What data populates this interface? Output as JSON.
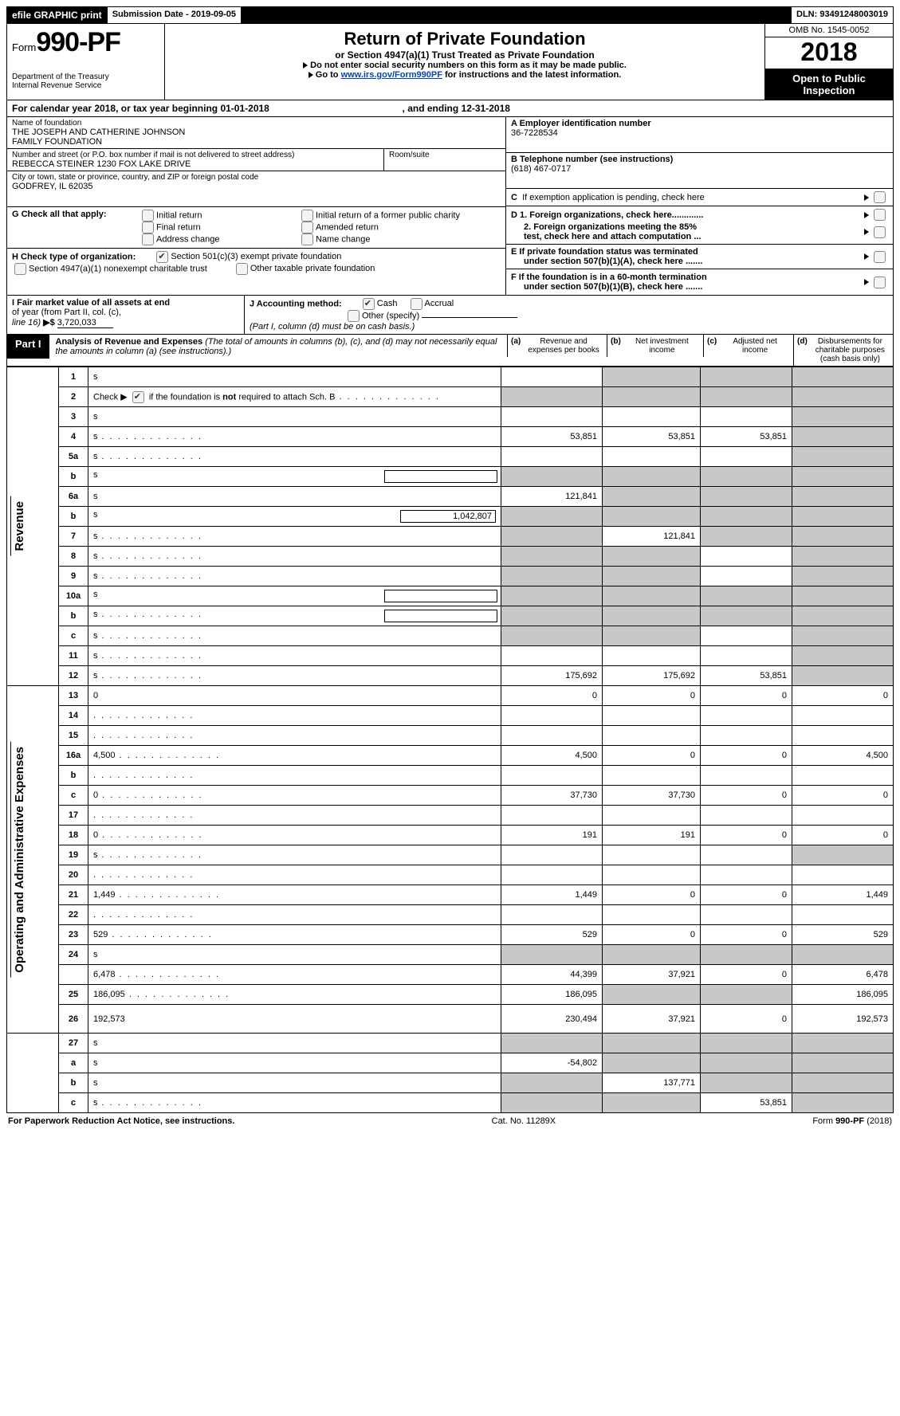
{
  "topbar": {
    "efile": "efile GRAPHIC print",
    "submission_label": "Submission Date - ",
    "submission_date": "2019-09-05",
    "dln_label": "DLN: ",
    "dln": "93491248003019"
  },
  "header": {
    "form_prefix": "Form",
    "form_no": "990-PF",
    "dept1": "Department of the Treasury",
    "dept2": "Internal Revenue Service",
    "title": "Return of Private Foundation",
    "subtitle": "or Section 4947(a)(1) Trust Treated as Private Foundation",
    "note1": "Do not enter social security numbers on this form as it may be made public.",
    "note2_pre": "Go to ",
    "note2_link": "www.irs.gov/Form990PF",
    "note2_post": " for instructions and the latest information.",
    "omb": "OMB No. 1545-0052",
    "year": "2018",
    "open1": "Open to Public",
    "open2": "Inspection"
  },
  "calYear": {
    "pre": "For calendar year 2018, or tax year beginning ",
    "begin": "01-01-2018",
    "mid": ", and ending ",
    "end": "12-31-2018"
  },
  "org": {
    "name_label": "Name of foundation",
    "name1": "THE JOSEPH AND CATHERINE JOHNSON",
    "name2": "FAMILY FOUNDATION",
    "addr_label": "Number and street (or P.O. box number if mail is not delivered to street address)",
    "addr": "REBECCA STEINER 1230 FOX LAKE DRIVE",
    "room_label": "Room/suite",
    "city_label": "City or town, state or province, country, and ZIP or foreign postal code",
    "city": "GODFREY, IL  62035",
    "A_label": "A Employer identification number",
    "A_val": "36-7228534",
    "B_label": "B Telephone number (see instructions)",
    "B_val": "(618) 467-0717",
    "C_label": "C  If exemption application is pending, check here",
    "D1": "D 1. Foreign organizations, check here.............",
    "D2a": "2. Foreign organizations meeting the 85%",
    "D2b": "test, check here and attach computation ...",
    "E1": "E  If private foundation status was terminated",
    "E2": "under section 507(b)(1)(A), check here .......",
    "F1": "F  If the foundation is in a 60-month termination",
    "F2": "under section 507(b)(1)(B), check here ......."
  },
  "G": {
    "label": "G Check all that apply:",
    "opt1": "Initial return",
    "opt2": "Initial return of a former public charity",
    "opt3": "Final return",
    "opt4": "Amended return",
    "opt5": "Address change",
    "opt6": "Name change"
  },
  "H": {
    "label": "H Check type of organization:",
    "opt1": "Section 501(c)(3) exempt private foundation",
    "opt2": "Section 4947(a)(1) nonexempt charitable trust",
    "opt3": "Other taxable private foundation"
  },
  "I": {
    "line1": "I Fair market value of all assets at end",
    "line2": "of year (from Part II, col. (c),",
    "line3_pre": "line 16) ",
    "line3_sym": "▶$ ",
    "value": "3,720,033"
  },
  "J": {
    "label": "J Accounting method:",
    "cash": "Cash",
    "accrual": "Accrual",
    "other": "Other (specify)",
    "note": "(Part I, column (d) must be on cash basis.)"
  },
  "part1": {
    "badge": "Part I",
    "title": "Analysis of Revenue and Expenses ",
    "desc": "(The total of amounts in columns (b), (c), and (d) may not necessarily equal the amounts in column (a) (see instructions).)",
    "colA_l": "(a)",
    "colA": "Revenue and expenses per books",
    "colB_l": "(b)",
    "colB": "Net investment income",
    "colC_l": "(c)",
    "colC": "Adjusted net income",
    "colD_l": "(d)",
    "colD": "Disbursements for charitable purposes (cash basis only)"
  },
  "sideLabels": {
    "rev": "Revenue",
    "exp": "Operating and Administrative Expenses"
  },
  "rows": [
    {
      "n": "1",
      "d": "s",
      "a": "",
      "b": "s",
      "c": "s"
    },
    {
      "n": "2",
      "d": "s",
      "a": "s",
      "b": "s",
      "c": "s",
      "dots": true,
      "chk": true
    },
    {
      "n": "3",
      "d": "s",
      "a": "",
      "b": "",
      "c": ""
    },
    {
      "n": "4",
      "d": "s",
      "a": "53,851",
      "b": "53,851",
      "c": "53,851",
      "dots": true
    },
    {
      "n": "5a",
      "d": "s",
      "a": "",
      "b": "",
      "c": "",
      "dots": true
    },
    {
      "n": "b",
      "d": "s",
      "a": "s",
      "b": "s",
      "c": "s",
      "box": true
    },
    {
      "n": "6a",
      "d": "s",
      "a": "121,841",
      "b": "s",
      "c": "s"
    },
    {
      "n": "b",
      "d": "s",
      "a": "s",
      "b": "s",
      "c": "s",
      "boxval": "1,042,807"
    },
    {
      "n": "7",
      "d": "s",
      "a": "s",
      "b": "121,841",
      "c": "s",
      "dots": true
    },
    {
      "n": "8",
      "d": "s",
      "a": "s",
      "b": "s",
      "c": "",
      "dots": true
    },
    {
      "n": "9",
      "d": "s",
      "a": "s",
      "b": "s",
      "c": "",
      "dots": true
    },
    {
      "n": "10a",
      "d": "s",
      "a": "s",
      "b": "s",
      "c": "s",
      "box": true
    },
    {
      "n": "b",
      "d": "s",
      "a": "s",
      "b": "s",
      "c": "s",
      "box": true,
      "dots": true
    },
    {
      "n": "c",
      "d": "s",
      "a": "s",
      "b": "s",
      "c": "",
      "dots": true
    },
    {
      "n": "11",
      "d": "s",
      "a": "",
      "b": "",
      "c": "",
      "dots": true
    },
    {
      "n": "12",
      "d": "s",
      "a": "175,692",
      "b": "175,692",
      "c": "53,851",
      "dots": true
    }
  ],
  "expRows": [
    {
      "n": "13",
      "d": "0",
      "a": "0",
      "b": "0",
      "c": "0"
    },
    {
      "n": "14",
      "d": "",
      "a": "",
      "b": "",
      "c": "",
      "dots": true
    },
    {
      "n": "15",
      "d": "",
      "a": "",
      "b": "",
      "c": "",
      "dots": true
    },
    {
      "n": "16a",
      "d": "4,500",
      "a": "4,500",
      "b": "0",
      "c": "0",
      "dots": true
    },
    {
      "n": "b",
      "d": "",
      "a": "",
      "b": "",
      "c": "",
      "dots": true
    },
    {
      "n": "c",
      "d": "0",
      "a": "37,730",
      "b": "37,730",
      "c": "0",
      "dots": true
    },
    {
      "n": "17",
      "d": "",
      "a": "",
      "b": "",
      "c": "",
      "dots": true
    },
    {
      "n": "18",
      "d": "0",
      "a": "191",
      "b": "191",
      "c": "0",
      "dots": true
    },
    {
      "n": "19",
      "d": "s",
      "a": "",
      "b": "",
      "c": "",
      "dots": true
    },
    {
      "n": "20",
      "d": "",
      "a": "",
      "b": "",
      "c": "",
      "dots": true
    },
    {
      "n": "21",
      "d": "1,449",
      "a": "1,449",
      "b": "0",
      "c": "0",
      "dots": true
    },
    {
      "n": "22",
      "d": "",
      "a": "",
      "b": "",
      "c": "",
      "dots": true
    },
    {
      "n": "23",
      "d": "529",
      "a": "529",
      "b": "0",
      "c": "0",
      "dots": true
    },
    {
      "n": "24",
      "d": "s",
      "a": "s",
      "b": "s",
      "c": "s"
    },
    {
      "n": "",
      "d": "6,478",
      "a": "44,399",
      "b": "37,921",
      "c": "0",
      "dots": true
    },
    {
      "n": "25",
      "d": "186,095",
      "a": "186,095",
      "b": "s",
      "c": "s",
      "dots": true
    },
    {
      "n": "26",
      "d": "192,573",
      "a": "230,494",
      "b": "37,921",
      "c": "0",
      "tall": true
    }
  ],
  "subRows": [
    {
      "n": "27",
      "d": "s",
      "a": "s",
      "b": "s",
      "c": "s"
    },
    {
      "n": "a",
      "d": "s",
      "a": "-54,802",
      "b": "s",
      "c": "s"
    },
    {
      "n": "b",
      "d": "s",
      "a": "s",
      "b": "137,771",
      "c": "s"
    },
    {
      "n": "c",
      "d": "s",
      "a": "s",
      "b": "s",
      "c": "53,851",
      "dots": true
    }
  ],
  "footer": {
    "left": "For Paperwork Reduction Act Notice, see instructions.",
    "mid": "Cat. No. 11289X",
    "right_pre": "Form ",
    "right_bold": "990-PF",
    "right_post": " (2018)"
  }
}
